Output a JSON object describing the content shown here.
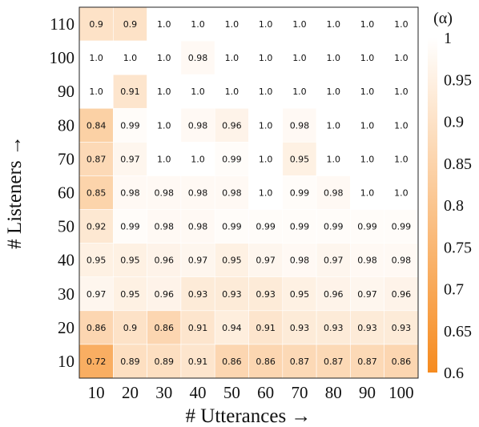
{
  "chart_data": {
    "type": "heatmap",
    "title": "",
    "xlabel": "# Utterances →",
    "ylabel": "# Listeners →",
    "x": [
      10,
      20,
      30,
      40,
      50,
      60,
      70,
      80,
      90,
      100
    ],
    "y": [
      110,
      100,
      90,
      80,
      70,
      60,
      50,
      40,
      30,
      20,
      10
    ],
    "x_tick_labels": [
      "10",
      "20",
      "30",
      "40",
      "50",
      "60",
      "70",
      "80",
      "90",
      "100"
    ],
    "y_tick_labels": [
      "110",
      "100",
      "90",
      "80",
      "70",
      "60",
      "50",
      "40",
      "30",
      "20",
      "10"
    ],
    "values": [
      [
        0.9,
        0.9,
        1.0,
        1.0,
        1.0,
        1.0,
        1.0,
        1.0,
        1.0,
        1.0
      ],
      [
        1.0,
        1.0,
        1.0,
        0.98,
        1.0,
        1.0,
        1.0,
        1.0,
        1.0,
        1.0
      ],
      [
        1.0,
        0.91,
        1.0,
        1.0,
        1.0,
        1.0,
        1.0,
        1.0,
        1.0,
        1.0
      ],
      [
        0.84,
        0.99,
        1.0,
        0.98,
        0.96,
        1.0,
        0.98,
        1.0,
        1.0,
        1.0
      ],
      [
        0.87,
        0.97,
        1.0,
        1.0,
        0.99,
        1.0,
        0.95,
        1.0,
        1.0,
        1.0
      ],
      [
        0.85,
        0.98,
        0.98,
        0.98,
        0.98,
        1.0,
        0.99,
        0.98,
        1.0,
        1.0
      ],
      [
        0.92,
        0.99,
        0.98,
        0.98,
        0.99,
        0.99,
        0.99,
        0.99,
        0.99,
        0.99
      ],
      [
        0.95,
        0.95,
        0.96,
        0.97,
        0.95,
        0.97,
        0.98,
        0.97,
        0.98,
        0.98
      ],
      [
        0.97,
        0.95,
        0.96,
        0.93,
        0.93,
        0.93,
        0.95,
        0.96,
        0.97,
        0.96
      ],
      [
        0.86,
        0.9,
        0.86,
        0.91,
        0.94,
        0.91,
        0.93,
        0.93,
        0.93,
        0.93
      ],
      [
        0.72,
        0.89,
        0.89,
        0.91,
        0.86,
        0.86,
        0.87,
        0.87,
        0.87,
        0.86
      ]
    ],
    "value_labels": [
      [
        "0.9",
        "0.9",
        "1.0",
        "1.0",
        "1.0",
        "1.0",
        "1.0",
        "1.0",
        "1.0",
        "1.0"
      ],
      [
        "1.0",
        "1.0",
        "1.0",
        "0.98",
        "1.0",
        "1.0",
        "1.0",
        "1.0",
        "1.0",
        "1.0"
      ],
      [
        "1.0",
        "0.91",
        "1.0",
        "1.0",
        "1.0",
        "1.0",
        "1.0",
        "1.0",
        "1.0",
        "1.0"
      ],
      [
        "0.84",
        "0.99",
        "1.0",
        "0.98",
        "0.96",
        "1.0",
        "0.98",
        "1.0",
        "1.0",
        "1.0"
      ],
      [
        "0.87",
        "0.97",
        "1.0",
        "1.0",
        "0.99",
        "1.0",
        "0.95",
        "1.0",
        "1.0",
        "1.0"
      ],
      [
        "0.85",
        "0.98",
        "0.98",
        "0.98",
        "0.98",
        "1.0",
        "0.99",
        "0.98",
        "1.0",
        "1.0"
      ],
      [
        "0.92",
        "0.99",
        "0.98",
        "0.98",
        "0.99",
        "0.99",
        "0.99",
        "0.99",
        "0.99",
        "0.99"
      ],
      [
        "0.95",
        "0.95",
        "0.96",
        "0.97",
        "0.95",
        "0.97",
        "0.98",
        "0.97",
        "0.98",
        "0.98"
      ],
      [
        "0.97",
        "0.95",
        "0.96",
        "0.93",
        "0.93",
        "0.93",
        "0.95",
        "0.96",
        "0.97",
        "0.96"
      ],
      [
        "0.86",
        "0.9",
        "0.86",
        "0.91",
        "0.94",
        "0.91",
        "0.93",
        "0.93",
        "0.93",
        "0.93"
      ],
      [
        "0.72",
        "0.89",
        "0.89",
        "0.91",
        "0.86",
        "0.86",
        "0.87",
        "0.87",
        "0.87",
        "0.86"
      ]
    ],
    "colorbar": {
      "label": "(α)",
      "min": 0.6,
      "max": 1.0,
      "ticks": [
        1,
        0.95,
        0.9,
        0.85,
        0.8,
        0.75,
        0.7,
        0.65,
        0.6
      ],
      "tick_labels": [
        "1",
        "0.95",
        "0.9",
        "0.85",
        "0.8",
        "0.75",
        "0.7",
        "0.65",
        "0.6"
      ],
      "color_low": "#f68b1f",
      "color_high": "#ffffff"
    },
    "grid": true
  }
}
